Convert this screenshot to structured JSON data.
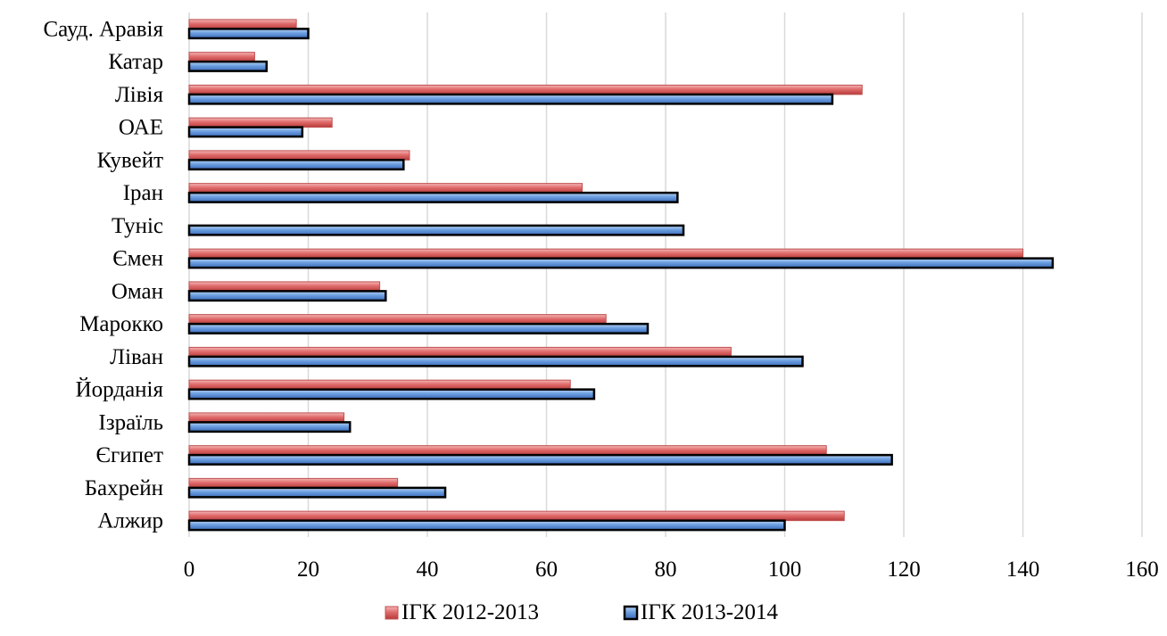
{
  "chart_data": {
    "type": "bar",
    "orientation": "horizontal",
    "categories": [
      "Сауд. Аравія",
      "Катар",
      "Лівія",
      "ОАЕ",
      "Кувейт",
      "Іран",
      "Туніс",
      "Ємен",
      "Оман",
      "Марокко",
      "Ліван",
      "Йорданія",
      "Ізраїль",
      "Єгипет",
      "Бахрейн",
      "Алжир"
    ],
    "series": [
      {
        "name": "ІГК 2012-2013",
        "color": "#e06b6b",
        "values": [
          18,
          11,
          113,
          24,
          37,
          66,
          null,
          140,
          32,
          70,
          91,
          64,
          26,
          107,
          35,
          110
        ]
      },
      {
        "name": "ІГК 2013-2014",
        "color": "#6b9ee0",
        "values": [
          20,
          13,
          108,
          19,
          36,
          82,
          83,
          145,
          33,
          77,
          103,
          68,
          27,
          118,
          43,
          100
        ]
      }
    ],
    "xticks": [
      "0",
      "20",
      "40",
      "60",
      "80",
      "100",
      "120",
      "140",
      "160"
    ],
    "xlim": [
      0,
      160
    ],
    "grid": true,
    "legend_position": "bottom"
  }
}
